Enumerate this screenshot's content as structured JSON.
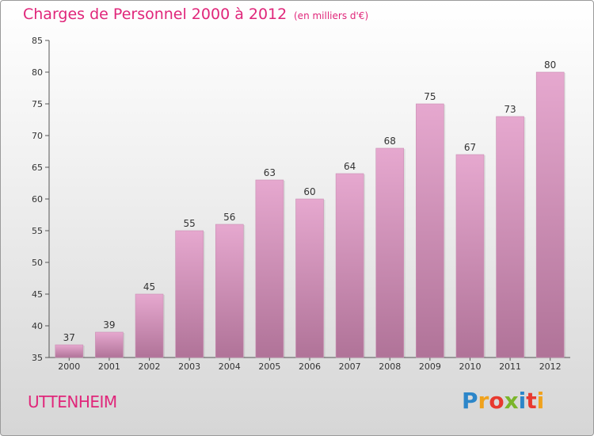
{
  "header": {
    "title": "Charges de Personnel 2000 à 2012",
    "subtitle": "(en milliers d'€)"
  },
  "footer": {
    "commune": "UTTENHEIM",
    "logo_letters": [
      "P",
      "r",
      "o",
      "x",
      "i",
      "t",
      "i"
    ]
  },
  "colors": {
    "title": "#e0267a",
    "bar_top": "#e6a8cf",
    "bar_bottom": "#b07398"
  },
  "chart_data": {
    "type": "bar",
    "categories": [
      "2000",
      "2001",
      "2002",
      "2003",
      "2004",
      "2005",
      "2006",
      "2007",
      "2008",
      "2009",
      "2010",
      "2011",
      "2012"
    ],
    "values": [
      37,
      39,
      45,
      55,
      56,
      63,
      60,
      64,
      68,
      75,
      67,
      73,
      80
    ],
    "title": "Charges de Personnel 2000 à 2012",
    "subtitle": "(en milliers d'€)",
    "xlabel": "",
    "ylabel": "",
    "ylim": [
      35,
      85
    ],
    "yticks": [
      35,
      40,
      45,
      50,
      55,
      60,
      65,
      70,
      75,
      80,
      85
    ],
    "grid": false,
    "data_labels": true
  }
}
